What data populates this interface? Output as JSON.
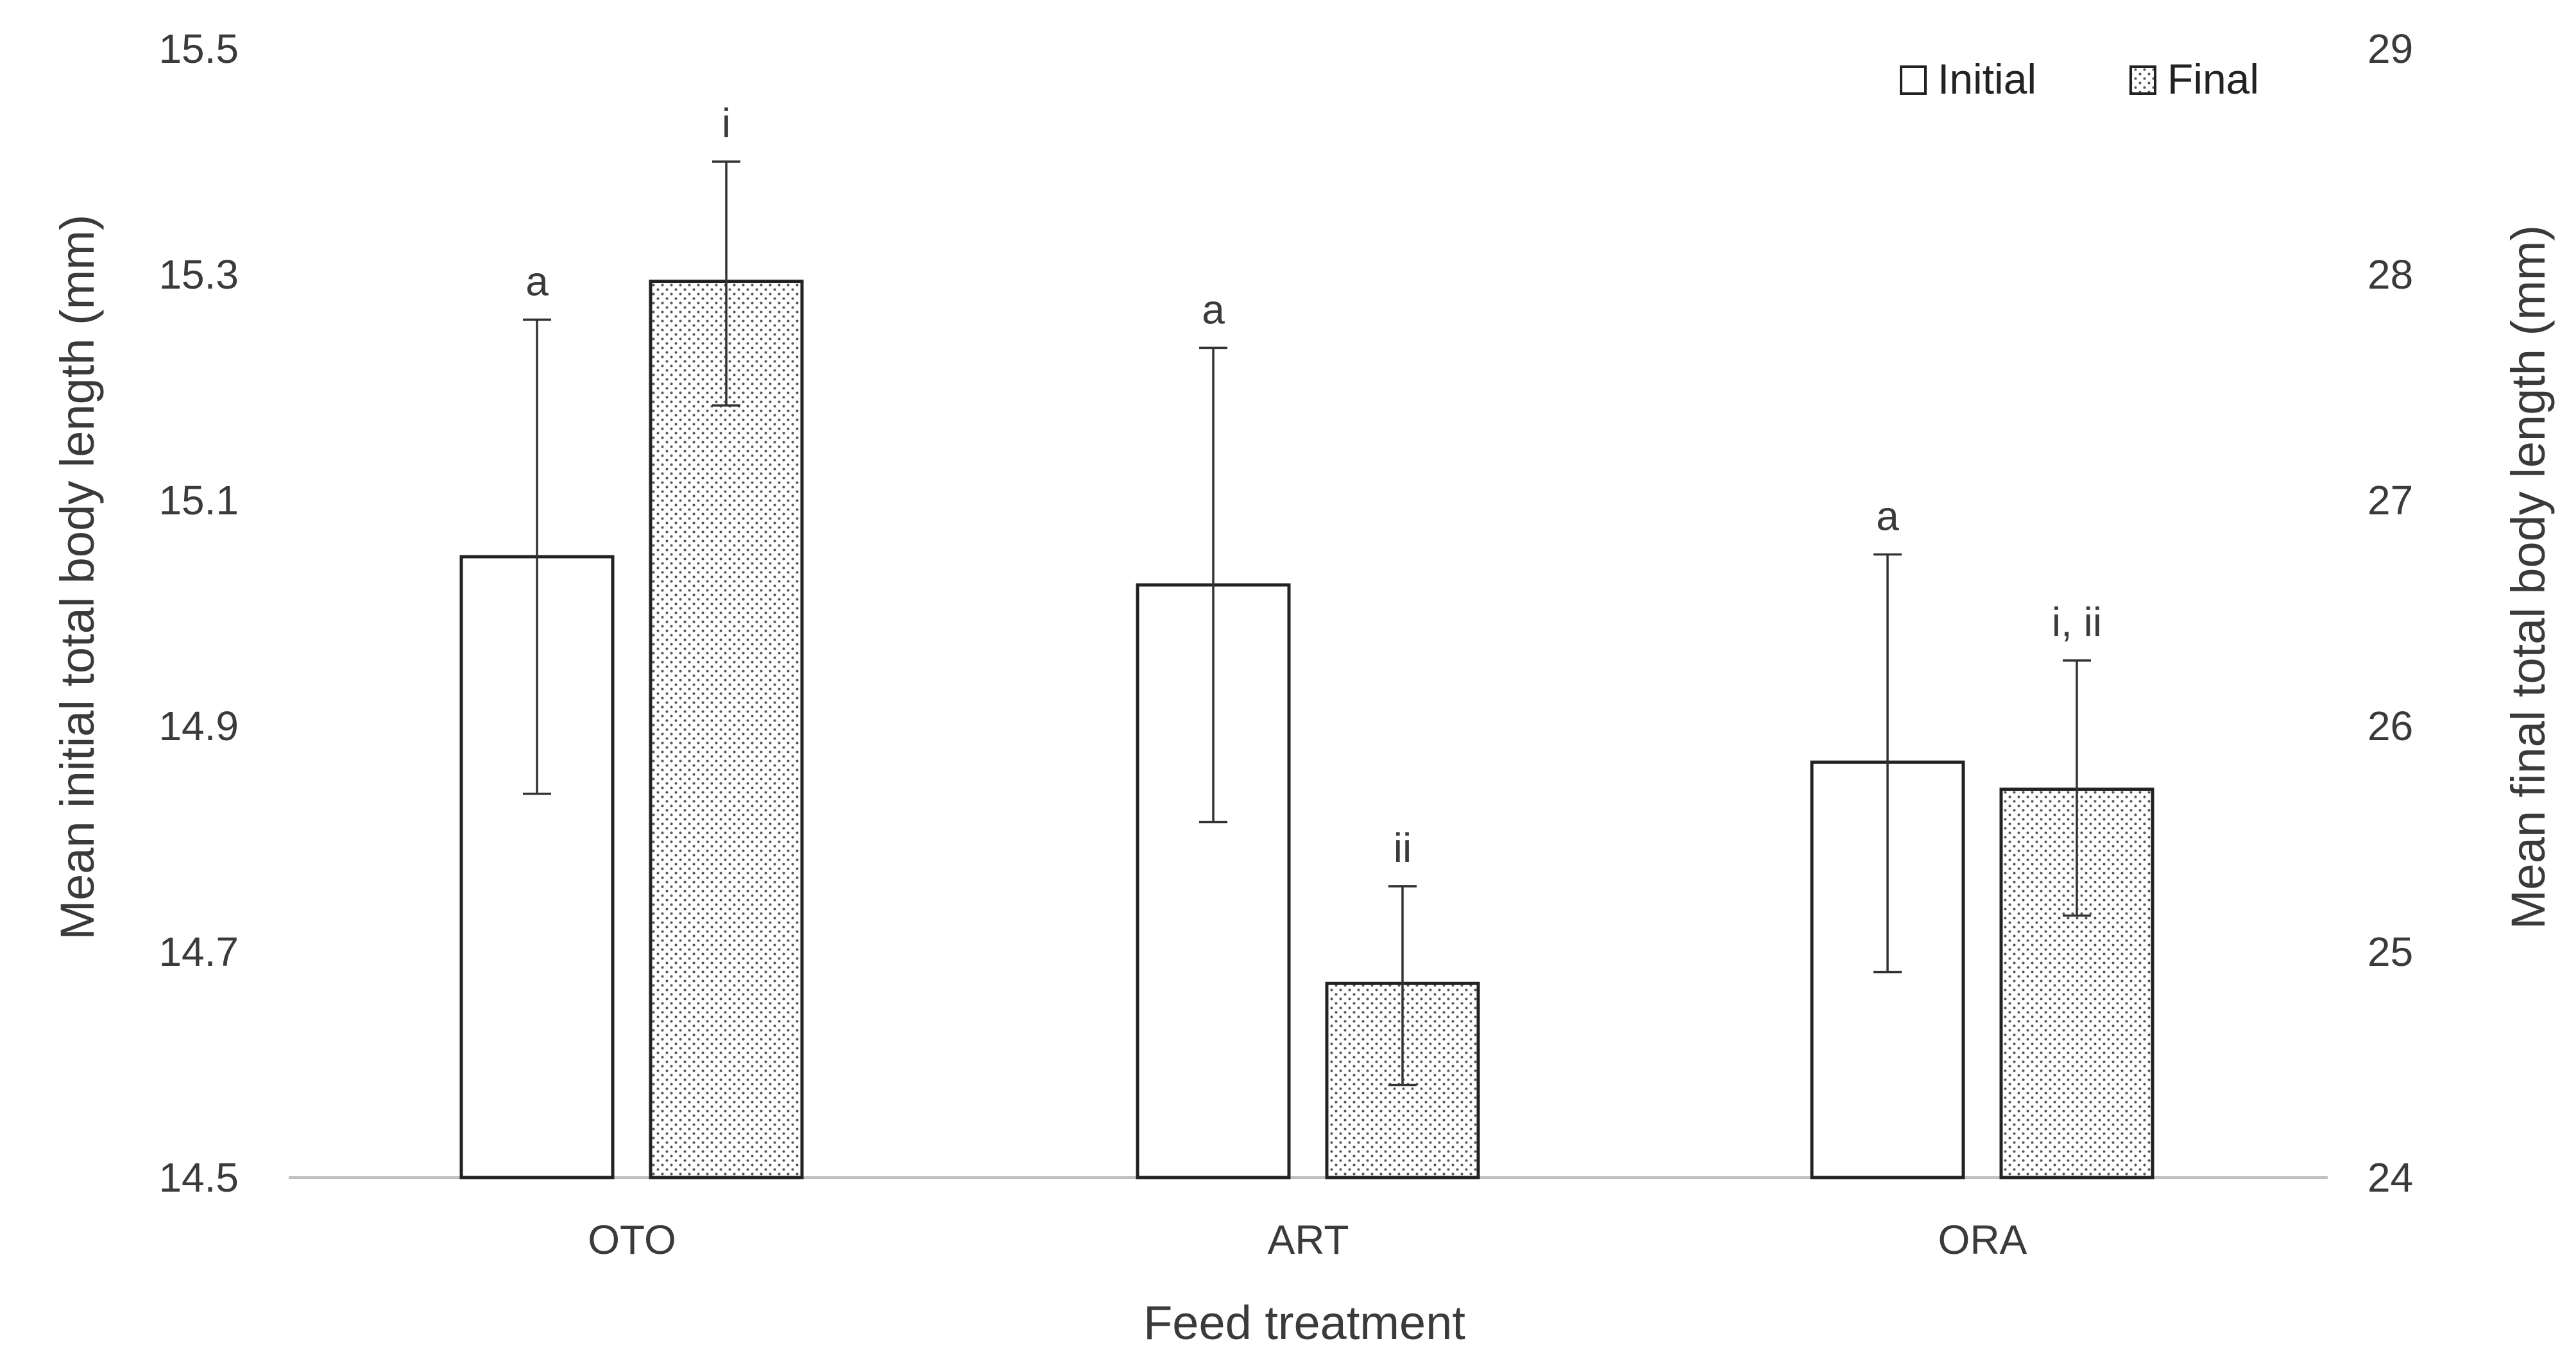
{
  "chart_data": {
    "type": "bar",
    "title": "",
    "xlabel": "Feed treatment",
    "ylabel": "Mean initial total body length (mm)",
    "y2label": "Mean final total body length (mm)",
    "categories": [
      "OTO",
      "ART",
      "ORA"
    ],
    "ylim": [
      14.5,
      15.5
    ],
    "y2lim": [
      24,
      29
    ],
    "yticks": [
      "14.5",
      "14.7",
      "14.9",
      "15.1",
      "15.3",
      "15.5"
    ],
    "y2ticks": [
      "24",
      "25",
      "26",
      "27",
      "28",
      "29"
    ],
    "legend_position": "top-right",
    "series": [
      {
        "name": "Initial",
        "axis": "left",
        "pattern": "white",
        "values": [
          15.05,
          15.025,
          14.868
        ],
        "err_low": [
          14.84,
          14.815,
          14.682
        ],
        "err_high": [
          15.26,
          15.235,
          15.052
        ],
        "labels": [
          "a",
          "a",
          "a"
        ]
      },
      {
        "name": "Final",
        "axis": "right",
        "pattern": "dotted",
        "values": [
          27.97,
          24.86,
          25.72
        ],
        "err_low": [
          27.42,
          24.41,
          25.16
        ],
        "err_high": [
          28.5,
          25.29,
          26.29
        ],
        "labels": [
          "i",
          "ii",
          "i, ii"
        ]
      }
    ]
  }
}
